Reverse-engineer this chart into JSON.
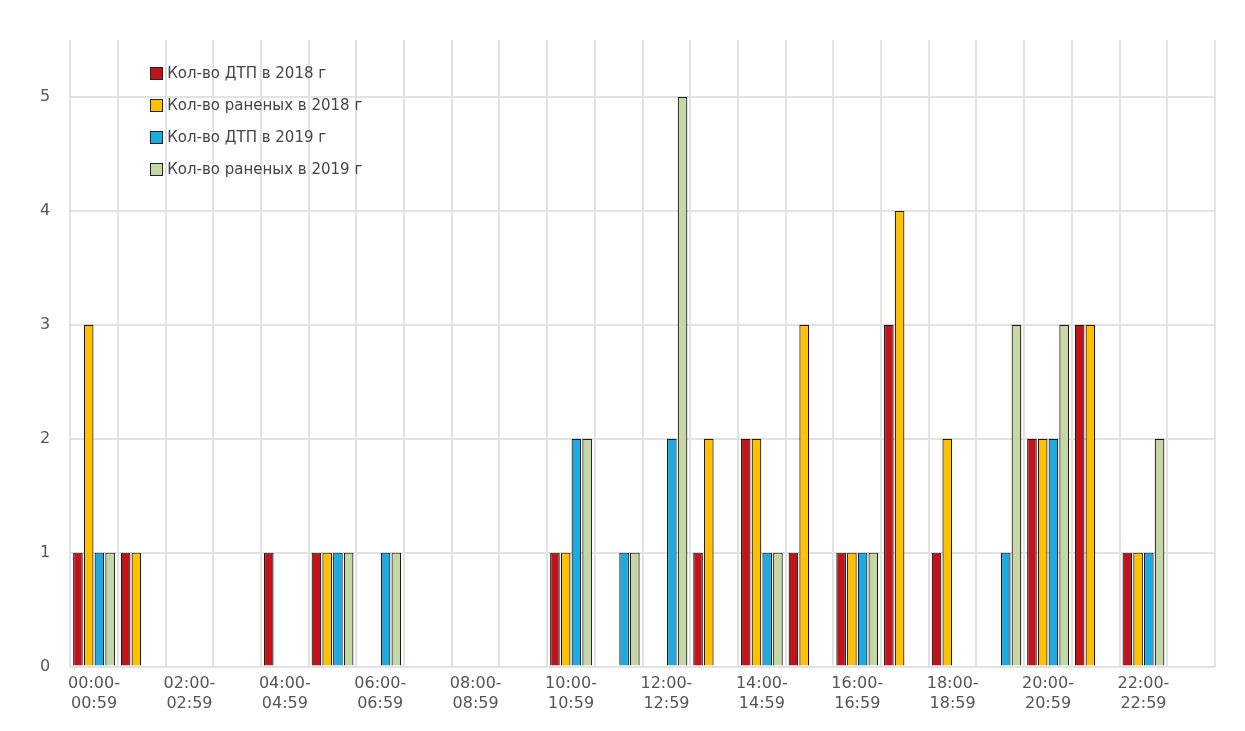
{
  "chart_data": {
    "type": "bar",
    "categories": [
      "00:00-00:59",
      null,
      "02:00-02:59",
      null,
      "04:00-04:59",
      null,
      "06:00-06:59",
      null,
      "08:00-08:59",
      null,
      "10:00-10:59",
      null,
      "12:00-12:59",
      null,
      "14:00-14:59",
      null,
      "16:00-16:59",
      null,
      "18:00-18:59",
      null,
      "20:00-20:59",
      null,
      "22:00-22:59",
      null
    ],
    "series": [
      {
        "name": "Кол-во ДТП в 2018 г",
        "color": "#c0141a",
        "values": [
          1,
          1,
          0,
          0,
          1,
          1,
          0,
          0,
          0,
          0,
          1,
          0,
          0,
          1,
          2,
          1,
          1,
          3,
          1,
          0,
          2,
          3,
          1,
          0
        ]
      },
      {
        "name": "Кол-во раненых в 2018 г",
        "color": "#ffc000",
        "values": [
          3,
          1,
          0,
          0,
          0,
          1,
          0,
          0,
          0,
          0,
          1,
          0,
          0,
          2,
          2,
          3,
          1,
          4,
          2,
          0,
          2,
          3,
          1,
          0
        ]
      },
      {
        "name": "Кол-во ДТП в 2019 г",
        "color": "#1fa9e1",
        "values": [
          1,
          0,
          0,
          0,
          0,
          1,
          1,
          0,
          0,
          0,
          2,
          1,
          2,
          0,
          1,
          0,
          1,
          0,
          0,
          1,
          2,
          0,
          1,
          0
        ]
      },
      {
        "name": "Кол-во раненых в 2019 г",
        "color": "#c4d7a4",
        "values": [
          1,
          0,
          0,
          0,
          0,
          1,
          1,
          0,
          0,
          0,
          2,
          1,
          5,
          0,
          1,
          0,
          1,
          0,
          0,
          3,
          3,
          0,
          2,
          0
        ]
      }
    ],
    "ylim": [
      0,
      5.5
    ],
    "yticks": [
      0,
      1,
      2,
      3,
      4,
      5
    ],
    "grid": true,
    "legend": "top left"
  }
}
